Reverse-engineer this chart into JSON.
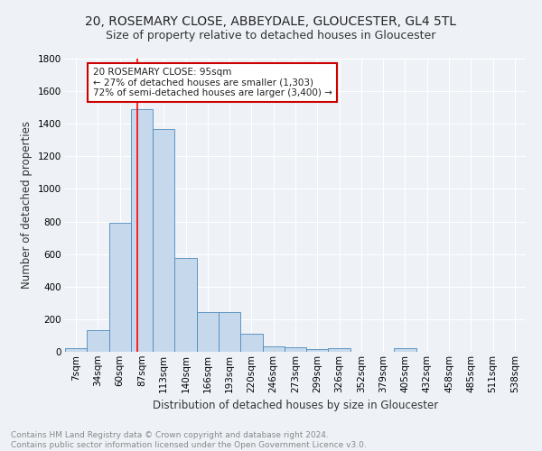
{
  "title": "20, ROSEMARY CLOSE, ABBEYDALE, GLOUCESTER, GL4 5TL",
  "subtitle": "Size of property relative to detached houses in Gloucester",
  "xlabel": "Distribution of detached houses by size in Gloucester",
  "ylabel": "Number of detached properties",
  "footer_line1": "Contains HM Land Registry data © Crown copyright and database right 2024.",
  "footer_line2": "Contains public sector information licensed under the Open Government Licence v3.0.",
  "bin_labels": [
    "7sqm",
    "34sqm",
    "60sqm",
    "87sqm",
    "113sqm",
    "140sqm",
    "166sqm",
    "193sqm",
    "220sqm",
    "246sqm",
    "273sqm",
    "299sqm",
    "326sqm",
    "352sqm",
    "379sqm",
    "405sqm",
    "432sqm",
    "458sqm",
    "485sqm",
    "511sqm",
    "538sqm"
  ],
  "bar_heights": [
    20,
    135,
    790,
    1490,
    1370,
    575,
    245,
    245,
    110,
    35,
    25,
    15,
    20,
    0,
    0,
    20,
    0,
    0,
    0,
    0,
    0
  ],
  "bar_color": "#c6d9ec",
  "bar_edge_color": "#4d88bb",
  "ylim": [
    0,
    1800
  ],
  "yticks": [
    0,
    200,
    400,
    600,
    800,
    1000,
    1200,
    1400,
    1600,
    1800
  ],
  "red_line_x": 3.3,
  "annotation_text": "20 ROSEMARY CLOSE: 95sqm\n← 27% of detached houses are smaller (1,303)\n72% of semi-detached houses are larger (3,400) →",
  "annotation_box_color": "#ffffff",
  "annotation_box_edge_color": "#cc0000",
  "bg_color": "#eef2f7",
  "plot_bg_color": "#eef2f7",
  "grid_color": "#ffffff",
  "title_fontsize": 10,
  "subtitle_fontsize": 9,
  "xlabel_fontsize": 8.5,
  "ylabel_fontsize": 8.5,
  "tick_fontsize": 7.5,
  "footer_fontsize": 6.5,
  "ann_fontsize": 7.5
}
